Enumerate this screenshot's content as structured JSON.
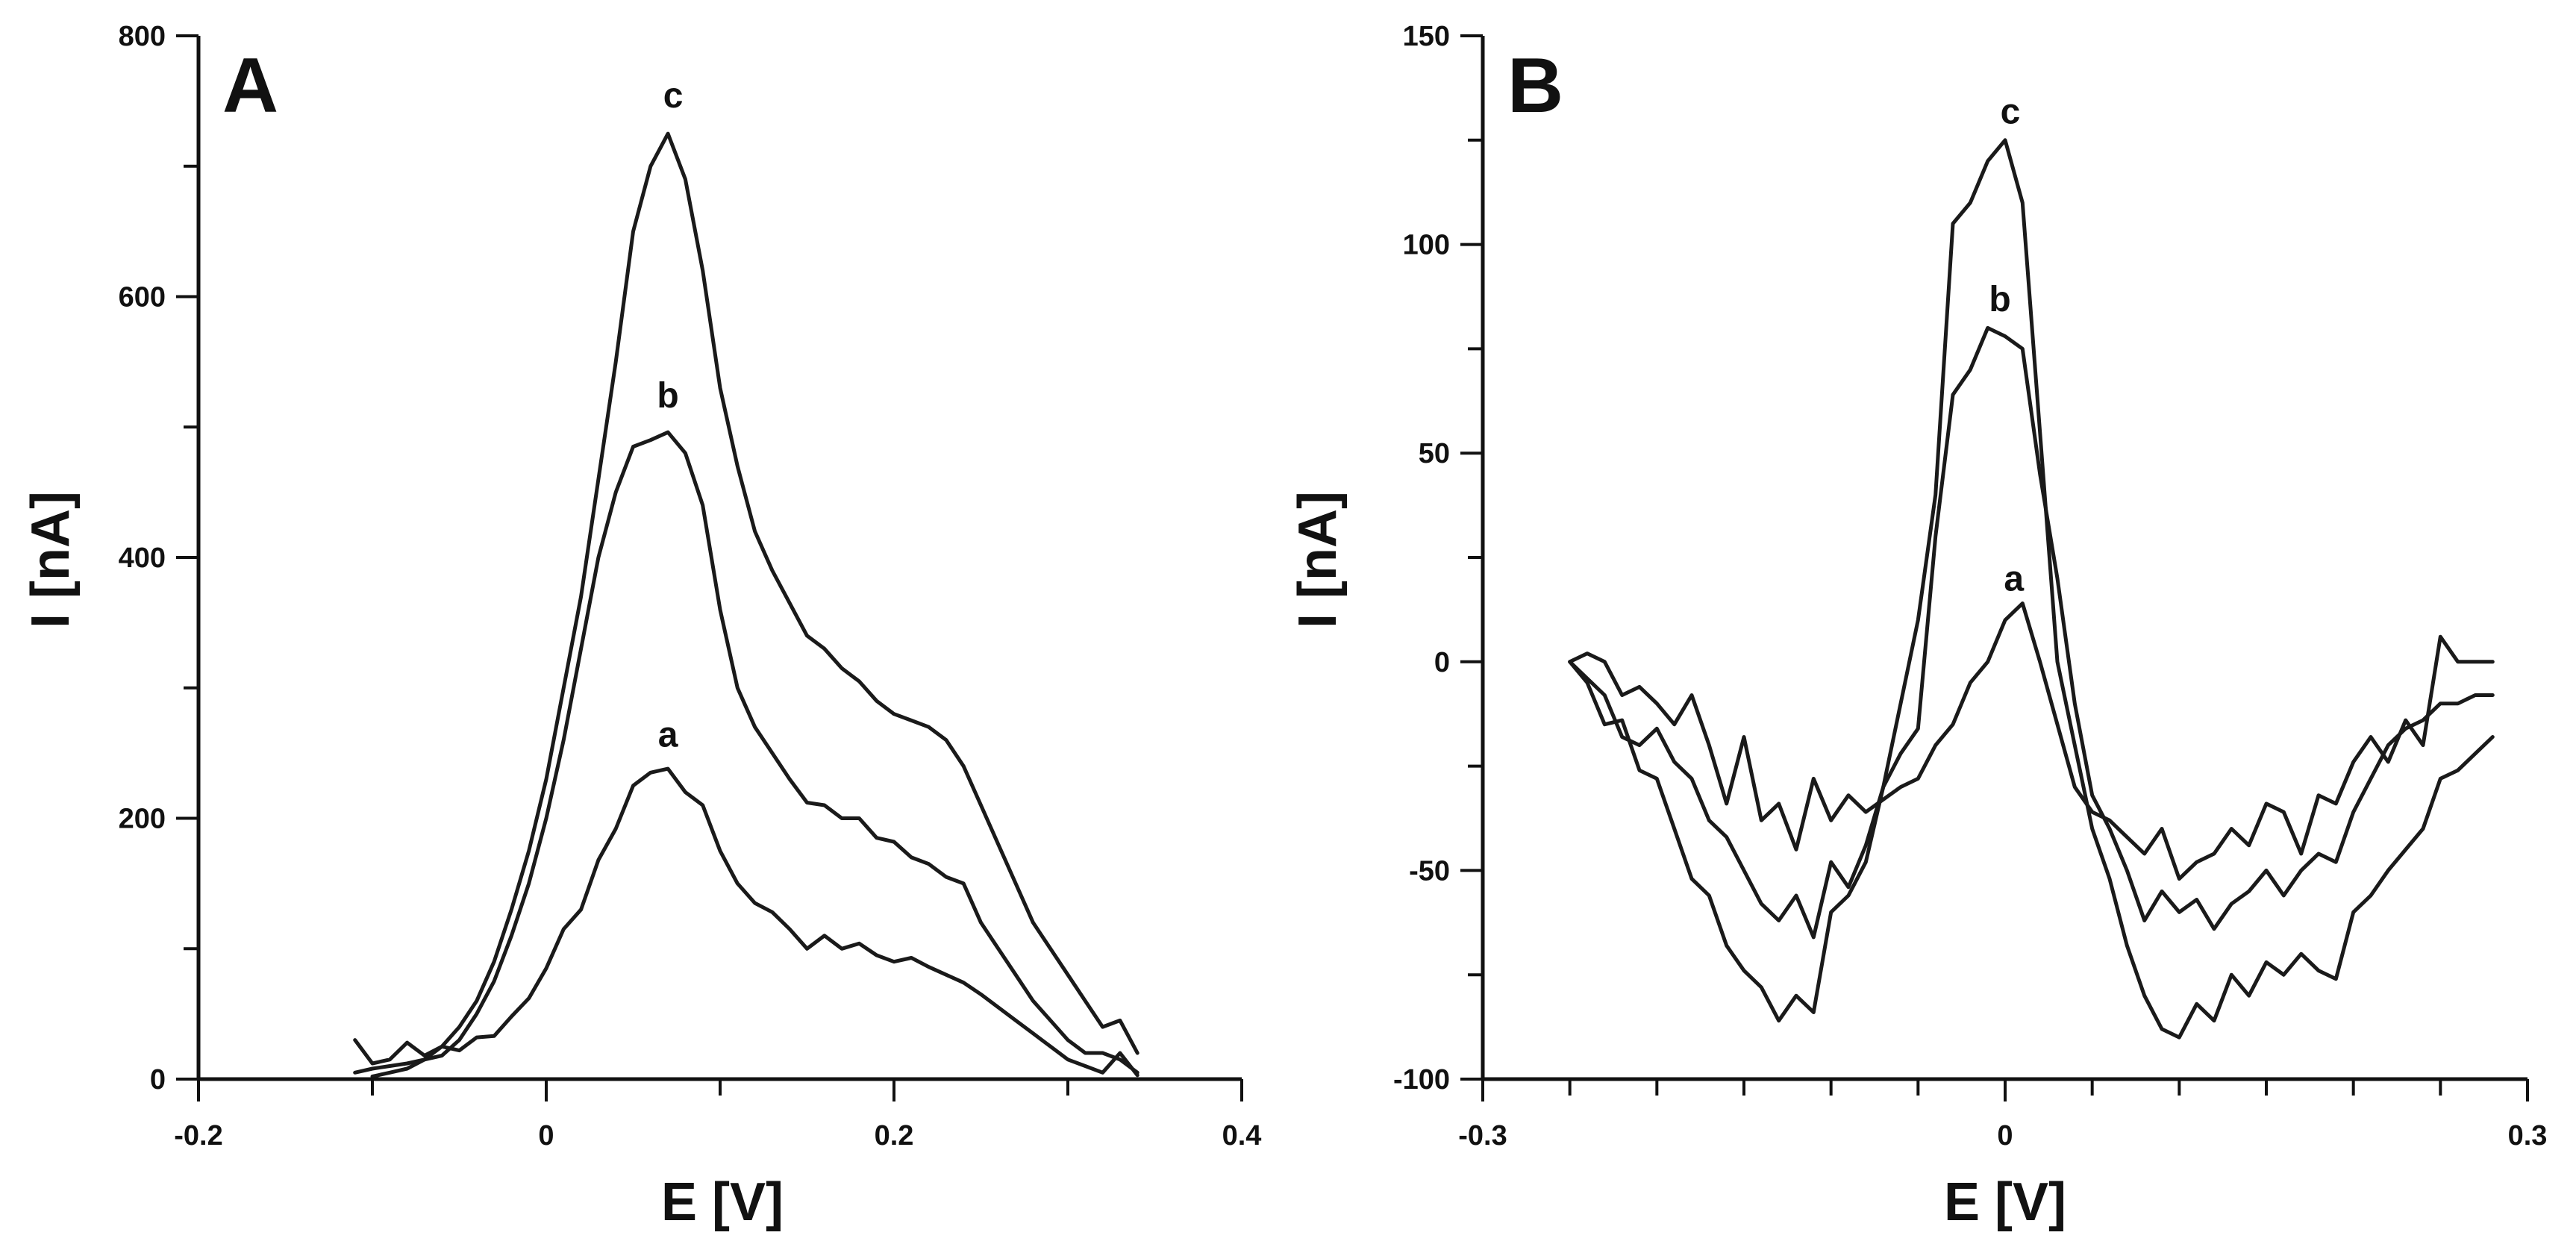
{
  "chart_data": [
    {
      "type": "line",
      "panel": "A",
      "title": "",
      "xlabel": "E [V]",
      "ylabel": "I [nA]",
      "xlim": [
        -0.2,
        0.4
      ],
      "ylim": [
        0,
        800
      ],
      "xticks": [
        -0.2,
        -0.1,
        0,
        0.1,
        0.2,
        0.3,
        0.4
      ],
      "xtick_labels": [
        "-0.2",
        "",
        "0",
        "",
        "0.2",
        "",
        "0.4"
      ],
      "yticks": [
        0,
        100,
        200,
        300,
        400,
        500,
        600,
        700,
        800
      ],
      "ytick_labels": [
        "0",
        "",
        "200",
        "",
        "400",
        "",
        "600",
        "",
        "800"
      ],
      "series": [
        {
          "name": "a",
          "label_at": [
            0.07,
            255
          ],
          "x": [
            -0.11,
            -0.1,
            -0.09,
            -0.08,
            -0.07,
            -0.06,
            -0.05,
            -0.04,
            -0.03,
            -0.02,
            -0.01,
            0,
            0.01,
            0.02,
            0.03,
            0.04,
            0.05,
            0.06,
            0.07,
            0.08,
            0.09,
            0.1,
            0.11,
            0.12,
            0.13,
            0.14,
            0.15,
            0.16,
            0.17,
            0.18,
            0.19,
            0.2,
            0.21,
            0.22,
            0.23,
            0.24,
            0.25,
            0.26,
            0.27,
            0.28,
            0.29,
            0.3,
            0.31,
            0.32,
            0.33,
            0.34
          ],
          "y": [
            30,
            12,
            15,
            28,
            18,
            25,
            22,
            32,
            33,
            48,
            62,
            85,
            115,
            130,
            168,
            192,
            225,
            235,
            238,
            220,
            210,
            175,
            150,
            135,
            128,
            115,
            100,
            110,
            100,
            104,
            95,
            90,
            93,
            86,
            80,
            74,
            65,
            55,
            45,
            35,
            25,
            15,
            10,
            5,
            20,
            3
          ]
        },
        {
          "name": "b",
          "label_at": [
            0.07,
            515
          ],
          "x": [
            -0.11,
            -0.1,
            -0.09,
            -0.08,
            -0.07,
            -0.06,
            -0.05,
            -0.04,
            -0.03,
            -0.02,
            -0.01,
            0,
            0.01,
            0.02,
            0.03,
            0.04,
            0.05,
            0.06,
            0.07,
            0.08,
            0.09,
            0.1,
            0.11,
            0.12,
            0.13,
            0.14,
            0.15,
            0.16,
            0.17,
            0.18,
            0.19,
            0.2,
            0.21,
            0.22,
            0.23,
            0.24,
            0.25,
            0.26,
            0.27,
            0.28,
            0.29,
            0.3,
            0.31,
            0.32,
            0.33,
            0.34
          ],
          "y": [
            5,
            8,
            10,
            12,
            15,
            18,
            30,
            50,
            75,
            110,
            150,
            200,
            260,
            330,
            400,
            450,
            485,
            490,
            496,
            480,
            440,
            360,
            300,
            270,
            250,
            230,
            212,
            210,
            200,
            200,
            185,
            182,
            170,
            165,
            155,
            150,
            120,
            100,
            80,
            60,
            45,
            30,
            20,
            20,
            15,
            5
          ]
        },
        {
          "name": "c",
          "label_at": [
            0.073,
            745
          ],
          "x": [
            -0.1,
            -0.09,
            -0.08,
            -0.07,
            -0.06,
            -0.05,
            -0.04,
            -0.03,
            -0.02,
            -0.01,
            0,
            0.01,
            0.02,
            0.03,
            0.04,
            0.05,
            0.06,
            0.07,
            0.08,
            0.09,
            0.1,
            0.11,
            0.12,
            0.13,
            0.14,
            0.15,
            0.16,
            0.17,
            0.18,
            0.19,
            0.2,
            0.21,
            0.22,
            0.23,
            0.24,
            0.25,
            0.26,
            0.27,
            0.28,
            0.29,
            0.3,
            0.31,
            0.32,
            0.33,
            0.34
          ],
          "y": [
            2,
            5,
            8,
            15,
            25,
            40,
            60,
            90,
            130,
            175,
            230,
            300,
            370,
            460,
            550,
            650,
            700,
            725,
            690,
            620,
            530,
            470,
            420,
            390,
            365,
            340,
            330,
            315,
            305,
            290,
            280,
            275,
            270,
            260,
            240,
            210,
            180,
            150,
            120,
            100,
            80,
            60,
            40,
            45,
            20
          ]
        }
      ]
    },
    {
      "type": "line",
      "panel": "B",
      "title": "",
      "xlabel": "E [V]",
      "ylabel": "I [nA]",
      "xlim": [
        -0.3,
        0.3
      ],
      "ylim": [
        -100,
        150
      ],
      "xticks": [
        -0.3,
        -0.25,
        -0.2,
        -0.15,
        -0.1,
        -0.05,
        0,
        0.05,
        0.1,
        0.15,
        0.2,
        0.25,
        0.3
      ],
      "xtick_labels": [
        "-0.3",
        "",
        "",
        "",
        "",
        "",
        "0",
        "",
        "",
        "",
        "",
        "",
        "0.3"
      ],
      "yticks": [
        -100,
        -75,
        -50,
        -25,
        0,
        25,
        50,
        75,
        100,
        125,
        150
      ],
      "ytick_labels": [
        "-100",
        "",
        "-50",
        "",
        "0",
        "",
        "50",
        "",
        "100",
        "",
        "150"
      ],
      "series": [
        {
          "name": "a",
          "label_at": [
            0.005,
            17
          ],
          "x": [
            -0.25,
            -0.24,
            -0.23,
            -0.22,
            -0.21,
            -0.2,
            -0.19,
            -0.18,
            -0.17,
            -0.16,
            -0.15,
            -0.14,
            -0.13,
            -0.12,
            -0.11,
            -0.1,
            -0.09,
            -0.08,
            -0.07,
            -0.06,
            -0.05,
            -0.04,
            -0.03,
            -0.02,
            -0.01,
            0,
            0.01,
            0.02,
            0.03,
            0.04,
            0.05,
            0.06,
            0.07,
            0.08,
            0.09,
            0.1,
            0.11,
            0.12,
            0.13,
            0.14,
            0.15,
            0.16,
            0.17,
            0.18,
            0.19,
            0.2,
            0.21,
            0.22,
            0.23,
            0.24,
            0.25,
            0.26,
            0.27,
            0.28
          ],
          "y": [
            0,
            2,
            0,
            -8,
            -6,
            -10,
            -15,
            -8,
            -20,
            -34,
            -18,
            -38,
            -34,
            -45,
            -28,
            -38,
            -32,
            -36,
            -33,
            -30,
            -28,
            -20,
            -15,
            -5,
            0,
            10,
            14,
            0,
            -15,
            -30,
            -36,
            -38,
            -42,
            -46,
            -40,
            -52,
            -48,
            -46,
            -40,
            -44,
            -34,
            -36,
            -46,
            -32,
            -34,
            -24,
            -18,
            -24,
            -14,
            -20,
            6,
            0,
            0,
            0
          ]
        },
        {
          "name": "b",
          "label_at": [
            -0.003,
            84
          ],
          "x": [
            -0.25,
            -0.24,
            -0.23,
            -0.22,
            -0.21,
            -0.2,
            -0.19,
            -0.18,
            -0.17,
            -0.16,
            -0.15,
            -0.14,
            -0.13,
            -0.12,
            -0.11,
            -0.1,
            -0.09,
            -0.08,
            -0.07,
            -0.06,
            -0.05,
            -0.04,
            -0.03,
            -0.02,
            -0.01,
            0,
            0.01,
            0.02,
            0.03,
            0.04,
            0.05,
            0.06,
            0.07,
            0.08,
            0.09,
            0.1,
            0.11,
            0.12,
            0.13,
            0.14,
            0.15,
            0.16,
            0.17,
            0.18,
            0.19,
            0.2,
            0.21,
            0.22,
            0.23,
            0.24,
            0.25,
            0.26,
            0.27,
            0.28
          ],
          "y": [
            0,
            -4,
            -8,
            -18,
            -20,
            -16,
            -24,
            -28,
            -38,
            -42,
            -50,
            -58,
            -62,
            -56,
            -66,
            -48,
            -54,
            -44,
            -30,
            -22,
            -16,
            30,
            64,
            70,
            80,
            78,
            75,
            45,
            20,
            -10,
            -32,
            -40,
            -50,
            -62,
            -55,
            -60,
            -57,
            -64,
            -58,
            -55,
            -50,
            -56,
            -50,
            -46,
            -48,
            -36,
            -28,
            -20,
            -16,
            -14,
            -10,
            -10,
            -8,
            -8
          ]
        },
        {
          "name": "c",
          "label_at": [
            0.003,
            129
          ],
          "x": [
            -0.25,
            -0.24,
            -0.23,
            -0.22,
            -0.21,
            -0.2,
            -0.19,
            -0.18,
            -0.17,
            -0.16,
            -0.15,
            -0.14,
            -0.13,
            -0.12,
            -0.11,
            -0.1,
            -0.09,
            -0.08,
            -0.07,
            -0.06,
            -0.05,
            -0.04,
            -0.03,
            -0.02,
            -0.01,
            0,
            0.01,
            0.02,
            0.03,
            0.04,
            0.05,
            0.06,
            0.07,
            0.08,
            0.09,
            0.1,
            0.11,
            0.12,
            0.13,
            0.14,
            0.15,
            0.16,
            0.17,
            0.18,
            0.19,
            0.2,
            0.21,
            0.22,
            0.23,
            0.24,
            0.25,
            0.26,
            0.27,
            0.28
          ],
          "y": [
            0,
            -5,
            -15,
            -14,
            -26,
            -28,
            -40,
            -52,
            -56,
            -68,
            -74,
            -78,
            -86,
            -80,
            -84,
            -60,
            -56,
            -48,
            -30,
            -10,
            10,
            40,
            105,
            110,
            120,
            125,
            110,
            55,
            0,
            -20,
            -40,
            -52,
            -68,
            -80,
            -88,
            -90,
            -82,
            -86,
            -75,
            -80,
            -72,
            -75,
            -70,
            -74,
            -76,
            -60,
            -56,
            -50,
            -45,
            -40,
            -28,
            -26,
            -22,
            -18
          ]
        }
      ]
    }
  ]
}
